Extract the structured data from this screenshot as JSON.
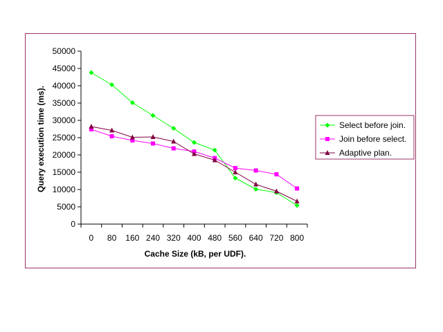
{
  "chart_data": {
    "type": "line",
    "title": "",
    "xlabel": "Cache Size (kB, per UDF).",
    "ylabel": "Query execution time (ms).",
    "categories": [
      "0",
      "80",
      "160",
      "240",
      "320",
      "400",
      "480",
      "560",
      "640",
      "720",
      "800"
    ],
    "ylim": [
      0,
      50000
    ],
    "yticks": [
      0,
      5000,
      10000,
      15000,
      20000,
      25000,
      30000,
      35000,
      40000,
      45000,
      50000
    ],
    "grid": false,
    "legend_position": "right",
    "series": [
      {
        "name": "Select before join.",
        "color": "#00ff00",
        "marker": "diamond",
        "values": [
          43800,
          40300,
          35100,
          31400,
          27700,
          23600,
          21400,
          13300,
          10100,
          9100,
          5400
        ]
      },
      {
        "name": "Join before select.",
        "color": "#ff00ff",
        "marker": "square",
        "values": [
          27400,
          25400,
          24200,
          23300,
          21900,
          21000,
          19100,
          16200,
          15500,
          14400,
          10300
        ]
      },
      {
        "name": "Adaptive plan.",
        "color": "#800040",
        "marker": "triangle",
        "values": [
          28200,
          27100,
          25100,
          25200,
          23900,
          20300,
          18500,
          15000,
          11500,
          9500,
          6600
        ]
      }
    ]
  }
}
